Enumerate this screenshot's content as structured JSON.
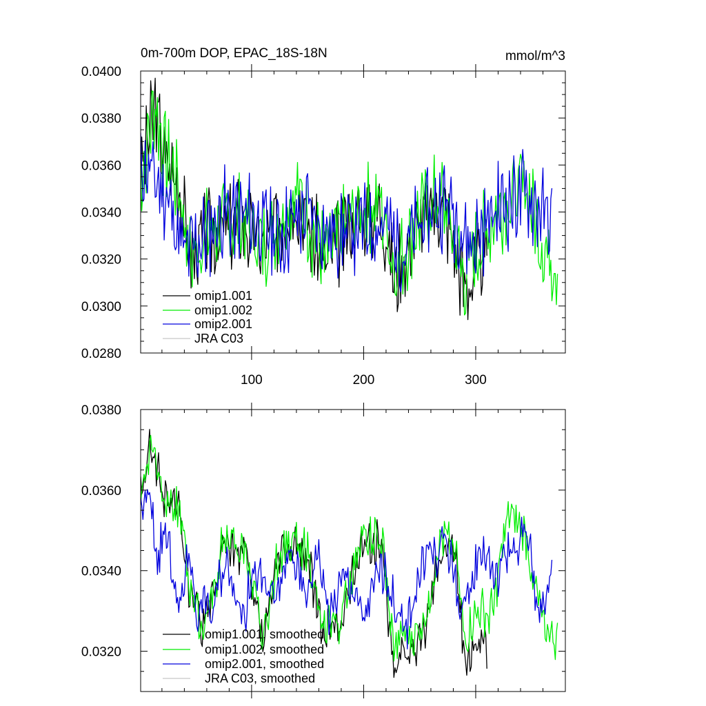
{
  "chart_data": [
    {
      "type": "line",
      "title": "0m-700m DOP, EPAC_18S-18N",
      "units": "mmol/m^3",
      "xlim": [
        1,
        380
      ],
      "ylim": [
        0.028,
        0.04
      ],
      "xticks": [
        100,
        200,
        300
      ],
      "xtick_labels": [
        "100",
        "200",
        "300"
      ],
      "yticks": [
        0.028,
        0.03,
        0.032,
        0.034,
        0.036,
        0.038,
        0.04
      ],
      "ytick_labels": [
        "0.0280",
        "0.0300",
        "0.0320",
        "0.0340",
        "0.0360",
        "0.0380",
        "0.0400"
      ],
      "legend_position": "bottom-left",
      "legend": [
        "omip1.001",
        "omip1.002",
        "omip2.001",
        "JRA C03"
      ],
      "series": [
        {
          "name": "omip1.001",
          "color": "#000000",
          "seed": 3,
          "x_end": 310,
          "values": [
            [
              1,
              0.0355
            ],
            [
              8,
              0.0372
            ],
            [
              14,
              0.0385
            ],
            [
              22,
              0.0363
            ],
            [
              35,
              0.0352
            ],
            [
              45,
              0.032
            ],
            [
              60,
              0.033
            ],
            [
              90,
              0.0336
            ],
            [
              110,
              0.0325
            ],
            [
              140,
              0.0347
            ],
            [
              165,
              0.0318
            ],
            [
              190,
              0.0336
            ],
            [
              215,
              0.0342
            ],
            [
              228,
              0.0312
            ],
            [
              250,
              0.0336
            ],
            [
              270,
              0.0345
            ],
            [
              290,
              0.0308
            ],
            [
              310,
              0.032
            ]
          ]
        },
        {
          "name": "omip1.002",
          "color": "#00ee00",
          "seed": 7,
          "x_end": 373,
          "values": [
            [
              1,
              0.0355
            ],
            [
              8,
              0.0372
            ],
            [
              14,
              0.0387
            ],
            [
              22,
              0.0364
            ],
            [
              35,
              0.0352
            ],
            [
              45,
              0.032
            ],
            [
              60,
              0.0331
            ],
            [
              90,
              0.0337
            ],
            [
              110,
              0.0326
            ],
            [
              140,
              0.0349
            ],
            [
              165,
              0.032
            ],
            [
              190,
              0.0338
            ],
            [
              215,
              0.0344
            ],
            [
              228,
              0.0316
            ],
            [
              250,
              0.0338
            ],
            [
              270,
              0.0347
            ],
            [
              290,
              0.0312
            ],
            [
              320,
              0.0342
            ],
            [
              345,
              0.0352
            ],
            [
              360,
              0.0325
            ],
            [
              373,
              0.0318
            ]
          ]
        },
        {
          "name": "omip2.001",
          "color": "#0000dd",
          "seed": 11,
          "x_end": 368,
          "values": [
            [
              1,
              0.036
            ],
            [
              10,
              0.0357
            ],
            [
              25,
              0.0346
            ],
            [
              40,
              0.0322
            ],
            [
              55,
              0.0328
            ],
            [
              75,
              0.034
            ],
            [
              100,
              0.0337
            ],
            [
              125,
              0.033
            ],
            [
              150,
              0.0341
            ],
            [
              170,
              0.033
            ],
            [
              195,
              0.0333
            ],
            [
              220,
              0.0335
            ],
            [
              235,
              0.0323
            ],
            [
              255,
              0.0338
            ],
            [
              275,
              0.0345
            ],
            [
              295,
              0.0326
            ],
            [
              320,
              0.0342
            ],
            [
              345,
              0.0348
            ],
            [
              368,
              0.0335
            ]
          ]
        },
        {
          "name": "JRA C03",
          "color": "#c8c8c8",
          "seed": 0,
          "x_end": 0,
          "values": []
        }
      ]
    },
    {
      "type": "line",
      "title": "",
      "units": "",
      "xlim": [
        1,
        380
      ],
      "ylim": [
        0.031,
        0.038
      ],
      "xticks": [
        100,
        200,
        300
      ],
      "xtick_labels": [
        "",
        "",
        ""
      ],
      "yticks": [
        0.032,
        0.034,
        0.036,
        0.038
      ],
      "ytick_labels": [
        "0.0320",
        "0.0340",
        "0.0360",
        "0.0380"
      ],
      "legend_position": "bottom-left",
      "legend": [
        "omip1.001, smoothed",
        "omip1.002, smoothed",
        "omip2.001, smoothed",
        "JRA C03, smoothed"
      ],
      "series": [
        {
          "name": "omip1.001, smoothed",
          "color": "#000000",
          "seed": 5,
          "x_end": 310,
          "values": [
            [
              1,
              0.036
            ],
            [
              5,
              0.0362
            ],
            [
              10,
              0.0372
            ],
            [
              16,
              0.0365
            ],
            [
              22,
              0.0358
            ],
            [
              30,
              0.0357
            ],
            [
              36,
              0.0354
            ],
            [
              40,
              0.0345
            ],
            [
              44,
              0.0335
            ],
            [
              50,
              0.0333
            ],
            [
              56,
              0.0325
            ],
            [
              64,
              0.0333
            ],
            [
              70,
              0.0336
            ],
            [
              72,
              0.0346
            ],
            [
              80,
              0.0347
            ],
            [
              88,
              0.0343
            ],
            [
              95,
              0.0345
            ],
            [
              100,
              0.0333
            ],
            [
              105,
              0.033
            ],
            [
              110,
              0.0322
            ],
            [
              116,
              0.033
            ],
            [
              122,
              0.0341
            ],
            [
              130,
              0.0346
            ],
            [
              140,
              0.0346
            ],
            [
              150,
              0.0344
            ],
            [
              157,
              0.0333
            ],
            [
              163,
              0.0323
            ],
            [
              170,
              0.0327
            ],
            [
              178,
              0.0325
            ],
            [
              185,
              0.0333
            ],
            [
              192,
              0.034
            ],
            [
              197,
              0.0348
            ],
            [
              205,
              0.0346
            ],
            [
              212,
              0.0347
            ],
            [
              218,
              0.0343
            ],
            [
              222,
              0.0328
            ],
            [
              228,
              0.0314
            ],
            [
              235,
              0.0322
            ],
            [
              245,
              0.032
            ],
            [
              253,
              0.0324
            ],
            [
              260,
              0.0333
            ],
            [
              267,
              0.0345
            ],
            [
              275,
              0.0346
            ],
            [
              282,
              0.0345
            ],
            [
              288,
              0.0325
            ],
            [
              292,
              0.0317
            ],
            [
              298,
              0.0322
            ],
            [
              305,
              0.0323
            ],
            [
              310,
              0.0319
            ]
          ]
        },
        {
          "name": "omip1.002, smoothed",
          "color": "#00ee00",
          "seed": 9,
          "x_end": 373,
          "values": [
            [
              1,
              0.0361
            ],
            [
              5,
              0.0363
            ],
            [
              10,
              0.0372
            ],
            [
              16,
              0.0366
            ],
            [
              22,
              0.0359
            ],
            [
              30,
              0.0357
            ],
            [
              36,
              0.0354
            ],
            [
              40,
              0.0346
            ],
            [
              44,
              0.0336
            ],
            [
              50,
              0.0333
            ],
            [
              56,
              0.0325
            ],
            [
              64,
              0.0333
            ],
            [
              70,
              0.0337
            ],
            [
              72,
              0.0347
            ],
            [
              80,
              0.0348
            ],
            [
              88,
              0.0344
            ],
            [
              95,
              0.0346
            ],
            [
              100,
              0.0334
            ],
            [
              105,
              0.0331
            ],
            [
              110,
              0.0324
            ],
            [
              116,
              0.0331
            ],
            [
              122,
              0.0342
            ],
            [
              130,
              0.0347
            ],
            [
              140,
              0.0347
            ],
            [
              150,
              0.0345
            ],
            [
              157,
              0.0334
            ],
            [
              163,
              0.0324
            ],
            [
              170,
              0.0328
            ],
            [
              178,
              0.0326
            ],
            [
              185,
              0.0334
            ],
            [
              192,
              0.0341
            ],
            [
              197,
              0.0349
            ],
            [
              205,
              0.0348
            ],
            [
              212,
              0.0348
            ],
            [
              218,
              0.0345
            ],
            [
              222,
              0.033
            ],
            [
              228,
              0.032
            ],
            [
              235,
              0.0324
            ],
            [
              245,
              0.0323
            ],
            [
              253,
              0.0327
            ],
            [
              260,
              0.0335
            ],
            [
              267,
              0.0347
            ],
            [
              275,
              0.0348
            ],
            [
              282,
              0.0346
            ],
            [
              288,
              0.0327
            ],
            [
              292,
              0.0323
            ],
            [
              298,
              0.0328
            ],
            [
              305,
              0.033
            ],
            [
              312,
              0.0328
            ],
            [
              318,
              0.0335
            ],
            [
              323,
              0.0345
            ],
            [
              330,
              0.0354
            ],
            [
              338,
              0.0351
            ],
            [
              345,
              0.0348
            ],
            [
              350,
              0.034
            ],
            [
              355,
              0.0333
            ],
            [
              360,
              0.0327
            ],
            [
              366,
              0.0325
            ],
            [
              373,
              0.0322
            ]
          ]
        },
        {
          "name": "omip2.001, smoothed",
          "color": "#0000dd",
          "seed": 13,
          "x_end": 368,
          "values": [
            [
              1,
              0.0357
            ],
            [
              5,
              0.0356
            ],
            [
              8,
              0.0359
            ],
            [
              12,
              0.0352
            ],
            [
              16,
              0.0342
            ],
            [
              22,
              0.035
            ],
            [
              28,
              0.0343
            ],
            [
              35,
              0.0329
            ],
            [
              40,
              0.0338
            ],
            [
              44,
              0.0346
            ],
            [
              48,
              0.0337
            ],
            [
              52,
              0.0328
            ],
            [
              58,
              0.0334
            ],
            [
              64,
              0.0328
            ],
            [
              72,
              0.0339
            ],
            [
              80,
              0.0342
            ],
            [
              88,
              0.0332
            ],
            [
              95,
              0.033
            ],
            [
              100,
              0.034
            ],
            [
              110,
              0.0337
            ],
            [
              120,
              0.0332
            ],
            [
              128,
              0.0339
            ],
            [
              136,
              0.0345
            ],
            [
              142,
              0.0338
            ],
            [
              150,
              0.0333
            ],
            [
              158,
              0.0346
            ],
            [
              164,
              0.0337
            ],
            [
              170,
              0.0328
            ],
            [
              178,
              0.0336
            ],
            [
              185,
              0.0339
            ],
            [
              192,
              0.0334
            ],
            [
              200,
              0.0328
            ],
            [
              208,
              0.0335
            ],
            [
              215,
              0.0341
            ],
            [
              222,
              0.0337
            ],
            [
              230,
              0.033
            ],
            [
              237,
              0.0324
            ],
            [
              244,
              0.0333
            ],
            [
              250,
              0.0339
            ],
            [
              258,
              0.0346
            ],
            [
              266,
              0.0342
            ],
            [
              272,
              0.035
            ],
            [
              280,
              0.034
            ],
            [
              286,
              0.0331
            ],
            [
              292,
              0.033
            ],
            [
              298,
              0.0339
            ],
            [
              305,
              0.0346
            ],
            [
              312,
              0.0343
            ],
            [
              318,
              0.0337
            ],
            [
              324,
              0.0343
            ],
            [
              330,
              0.0346
            ],
            [
              336,
              0.0342
            ],
            [
              342,
              0.035
            ],
            [
              348,
              0.0348
            ],
            [
              353,
              0.0334
            ],
            [
              358,
              0.0332
            ],
            [
              362,
              0.033
            ],
            [
              366,
              0.0339
            ],
            [
              368,
              0.0343
            ]
          ]
        },
        {
          "name": "JRA C03, smoothed",
          "color": "#c8c8c8",
          "seed": 0,
          "x_end": 0,
          "values": []
        }
      ]
    }
  ]
}
